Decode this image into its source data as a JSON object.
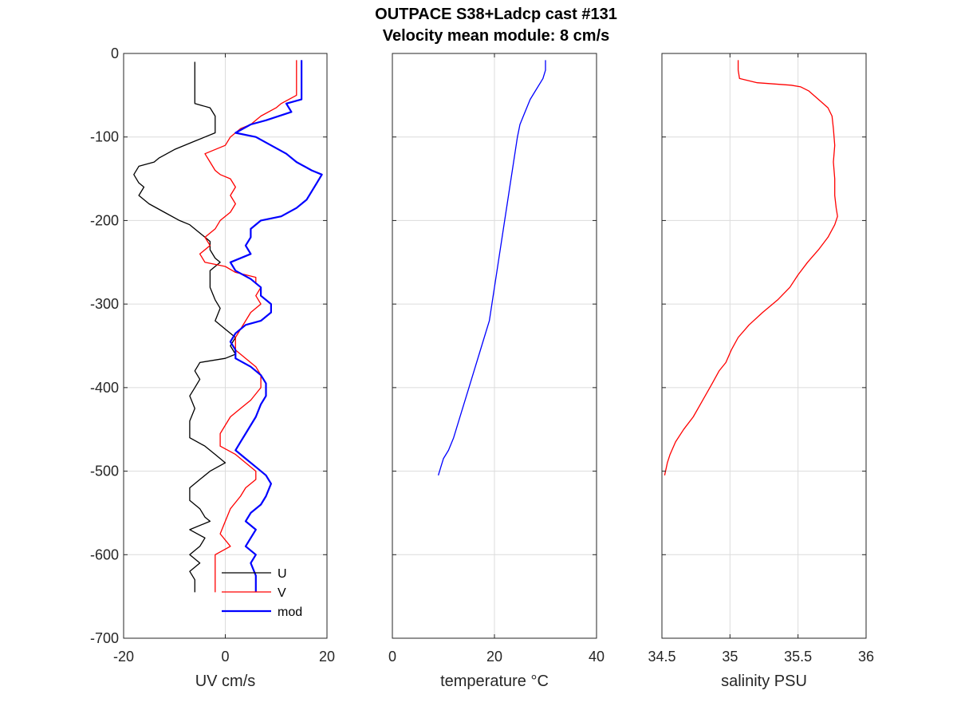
{
  "title": {
    "line1": "OUTPACE S38+Ladcp cast #131",
    "line2": "Velocity mean module:  8 cm/s"
  },
  "chart_data": [
    {
      "type": "line",
      "xlabel": "UV cm/s",
      "ylabel": "",
      "xlim": [
        -20,
        20
      ],
      "ylim": [
        -700,
        0
      ],
      "xticks": [
        -20,
        0,
        20
      ],
      "yticks": [
        0,
        -100,
        -200,
        -300,
        -400,
        -500,
        -600,
        -700
      ],
      "grid": true,
      "legend_position": "bottom-right",
      "colors": {
        "U": "#000000",
        "V": "#ff0000",
        "mod": "#0000ff"
      },
      "series": [
        {
          "name": "U",
          "color": "#000000",
          "points": [
            [
              -6,
              -10
            ],
            [
              -6,
              -30
            ],
            [
              -6,
              -60
            ],
            [
              -3,
              -65
            ],
            [
              -2,
              -75
            ],
            [
              -2,
              -85
            ],
            [
              -2,
              -95
            ],
            [
              -6,
              -105
            ],
            [
              -10,
              -115
            ],
            [
              -13,
              -125
            ],
            [
              -14,
              -130
            ],
            [
              -17,
              -135
            ],
            [
              -18,
              -145
            ],
            [
              -17,
              -155
            ],
            [
              -16,
              -160
            ],
            [
              -17,
              -170
            ],
            [
              -15,
              -180
            ],
            [
              -12,
              -190
            ],
            [
              -9,
              -200
            ],
            [
              -7,
              -205
            ],
            [
              -5,
              -215
            ],
            [
              -3,
              -225
            ],
            [
              -3,
              -235
            ],
            [
              -2,
              -245
            ],
            [
              -1,
              -250
            ],
            [
              -3,
              -260
            ],
            [
              -3,
              -270
            ],
            [
              -3,
              -280
            ],
            [
              -2,
              -295
            ],
            [
              -1,
              -305
            ],
            [
              -2,
              -320
            ],
            [
              0,
              -330
            ],
            [
              2,
              -340
            ],
            [
              1,
              -350
            ],
            [
              2,
              -360
            ],
            [
              0,
              -365
            ],
            [
              -5,
              -370
            ],
            [
              -6,
              -380
            ],
            [
              -5,
              -390
            ],
            [
              -6,
              -400
            ],
            [
              -7,
              -410
            ],
            [
              -6,
              -425
            ],
            [
              -7,
              -440
            ],
            [
              -7,
              -460
            ],
            [
              -4,
              -470
            ],
            [
              -2,
              -480
            ],
            [
              0,
              -490
            ],
            [
              -3,
              -500
            ],
            [
              -5,
              -510
            ],
            [
              -7,
              -520
            ],
            [
              -7,
              -535
            ],
            [
              -5,
              -545
            ],
            [
              -4,
              -555
            ],
            [
              -3,
              -560
            ],
            [
              -7,
              -570
            ],
            [
              -4,
              -580
            ],
            [
              -5,
              -590
            ],
            [
              -7,
              -600
            ],
            [
              -5,
              -610
            ],
            [
              -7,
              -620
            ],
            [
              -6,
              -630
            ],
            [
              -6,
              -645
            ]
          ]
        },
        {
          "name": "V",
          "color": "#ff0000",
          "points": [
            [
              14,
              -8
            ],
            [
              14,
              -30
            ],
            [
              14,
              -50
            ],
            [
              11,
              -60
            ],
            [
              10,
              -65
            ],
            [
              7,
              -75
            ],
            [
              5,
              -85
            ],
            [
              3,
              -90
            ],
            [
              1,
              -100
            ],
            [
              0,
              -110
            ],
            [
              -4,
              -120
            ],
            [
              -3,
              -130
            ],
            [
              -2,
              -140
            ],
            [
              -1,
              -145
            ],
            [
              1,
              -150
            ],
            [
              2,
              -160
            ],
            [
              1,
              -170
            ],
            [
              2,
              -180
            ],
            [
              1,
              -190
            ],
            [
              -1,
              -200
            ],
            [
              -2,
              -210
            ],
            [
              -4,
              -220
            ],
            [
              -3,
              -230
            ],
            [
              -5,
              -240
            ],
            [
              -4,
              -250
            ],
            [
              0,
              -255
            ],
            [
              2,
              -262
            ],
            [
              6,
              -268
            ],
            [
              6,
              -275
            ],
            [
              7,
              -280
            ],
            [
              6,
              -290
            ],
            [
              7,
              -300
            ],
            [
              5,
              -310
            ],
            [
              4,
              -320
            ],
            [
              3,
              -330
            ],
            [
              2,
              -340
            ],
            [
              2,
              -355
            ],
            [
              4,
              -365
            ],
            [
              6,
              -375
            ],
            [
              7,
              -385
            ],
            [
              7,
              -400
            ],
            [
              5,
              -415
            ],
            [
              3,
              -425
            ],
            [
              1,
              -435
            ],
            [
              0,
              -445
            ],
            [
              -1,
              -455
            ],
            [
              -1,
              -470
            ],
            [
              2,
              -480
            ],
            [
              4,
              -490
            ],
            [
              6,
              -500
            ],
            [
              6,
              -510
            ],
            [
              4,
              -520
            ],
            [
              3,
              -530
            ],
            [
              1,
              -545
            ],
            [
              0,
              -560
            ],
            [
              -1,
              -575
            ],
            [
              1,
              -590
            ],
            [
              -2,
              -600
            ],
            [
              -2,
              -615
            ],
            [
              -2,
              -625
            ],
            [
              -2,
              -645
            ]
          ]
        },
        {
          "name": "mod",
          "color": "#0000ff",
          "points": [
            [
              15,
              -8
            ],
            [
              15,
              -30
            ],
            [
              15,
              -55
            ],
            [
              12,
              -60
            ],
            [
              13,
              -70
            ],
            [
              8,
              -80
            ],
            [
              5,
              -85
            ],
            [
              2,
              -95
            ],
            [
              6,
              -100
            ],
            [
              9,
              -110
            ],
            [
              12,
              -120
            ],
            [
              14,
              -130
            ],
            [
              17,
              -140
            ],
            [
              19,
              -145
            ],
            [
              18,
              -155
            ],
            [
              17,
              -165
            ],
            [
              16,
              -175
            ],
            [
              14,
              -185
            ],
            [
              11,
              -195
            ],
            [
              7,
              -200
            ],
            [
              5,
              -210
            ],
            [
              5,
              -220
            ],
            [
              4,
              -230
            ],
            [
              5,
              -240
            ],
            [
              1,
              -250
            ],
            [
              2,
              -260
            ],
            [
              5,
              -270
            ],
            [
              7,
              -280
            ],
            [
              7,
              -290
            ],
            [
              9,
              -300
            ],
            [
              9,
              -310
            ],
            [
              7,
              -320
            ],
            [
              4,
              -325
            ],
            [
              2,
              -335
            ],
            [
              1,
              -345
            ],
            [
              2,
              -355
            ],
            [
              2,
              -365
            ],
            [
              5,
              -375
            ],
            [
              7,
              -385
            ],
            [
              8,
              -395
            ],
            [
              8,
              -410
            ],
            [
              7,
              -420
            ],
            [
              6,
              -435
            ],
            [
              5,
              -445
            ],
            [
              4,
              -455
            ],
            [
              3,
              -465
            ],
            [
              2,
              -475
            ],
            [
              4,
              -485
            ],
            [
              6,
              -495
            ],
            [
              8,
              -505
            ],
            [
              9,
              -515
            ],
            [
              8,
              -530
            ],
            [
              7,
              -540
            ],
            [
              5,
              -550
            ],
            [
              4,
              -560
            ],
            [
              6,
              -570
            ],
            [
              5,
              -580
            ],
            [
              4,
              -590
            ],
            [
              6,
              -600
            ],
            [
              5,
              -610
            ],
            [
              6,
              -625
            ],
            [
              6,
              -645
            ]
          ]
        }
      ]
    },
    {
      "type": "line",
      "xlabel": "temperature °C",
      "ylabel": "",
      "xlim": [
        0,
        40
      ],
      "ylim": [
        -700,
        0
      ],
      "xticks": [
        0,
        20,
        40
      ],
      "grid": true,
      "series": [
        {
          "color": "#0000ff",
          "points": [
            [
              30,
              -8
            ],
            [
              30,
              -20
            ],
            [
              29.5,
              -30
            ],
            [
              29,
              -35
            ],
            [
              28,
              -45
            ],
            [
              27,
              -55
            ],
            [
              26,
              -70
            ],
            [
              25,
              -85
            ],
            [
              24.5,
              -100
            ],
            [
              24,
              -120
            ],
            [
              23.5,
              -140
            ],
            [
              23,
              -160
            ],
            [
              22.5,
              -180
            ],
            [
              22,
              -200
            ],
            [
              21.5,
              -220
            ],
            [
              21,
              -240
            ],
            [
              20.5,
              -260
            ],
            [
              20,
              -280
            ],
            [
              19.5,
              -300
            ],
            [
              19,
              -320
            ],
            [
              18,
              -340
            ],
            [
              17,
              -360
            ],
            [
              16,
              -380
            ],
            [
              15,
              -400
            ],
            [
              14,
              -420
            ],
            [
              13,
              -440
            ],
            [
              12,
              -460
            ],
            [
              11,
              -475
            ],
            [
              10,
              -485
            ],
            [
              9.5,
              -495
            ],
            [
              9,
              -505
            ]
          ]
        }
      ]
    },
    {
      "type": "line",
      "xlabel": "salinity PSU",
      "ylabel": "",
      "xlim": [
        34.5,
        36
      ],
      "ylim": [
        -700,
        0
      ],
      "xticks": [
        34.5,
        35,
        35.5,
        36
      ],
      "grid": true,
      "series": [
        {
          "color": "#ff0000",
          "points": [
            [
              35.06,
              -8
            ],
            [
              35.06,
              -20
            ],
            [
              35.07,
              -30
            ],
            [
              35.2,
              -35
            ],
            [
              35.45,
              -38
            ],
            [
              35.52,
              -40
            ],
            [
              35.58,
              -45
            ],
            [
              35.65,
              -55
            ],
            [
              35.72,
              -65
            ],
            [
              35.75,
              -75
            ],
            [
              35.76,
              -90
            ],
            [
              35.77,
              -110
            ],
            [
              35.76,
              -130
            ],
            [
              35.77,
              -150
            ],
            [
              35.77,
              -170
            ],
            [
              35.78,
              -185
            ],
            [
              35.79,
              -195
            ],
            [
              35.77,
              -205
            ],
            [
              35.72,
              -220
            ],
            [
              35.65,
              -235
            ],
            [
              35.57,
              -250
            ],
            [
              35.5,
              -265
            ],
            [
              35.44,
              -280
            ],
            [
              35.35,
              -295
            ],
            [
              35.24,
              -310
            ],
            [
              35.14,
              -325
            ],
            [
              35.06,
              -340
            ],
            [
              35.01,
              -355
            ],
            [
              34.97,
              -370
            ],
            [
              34.92,
              -380
            ],
            [
              34.87,
              -395
            ],
            [
              34.8,
              -415
            ],
            [
              34.73,
              -435
            ],
            [
              34.66,
              -450
            ],
            [
              34.6,
              -465
            ],
            [
              34.56,
              -480
            ],
            [
              34.54,
              -490
            ],
            [
              34.52,
              -505
            ]
          ]
        }
      ]
    }
  ]
}
